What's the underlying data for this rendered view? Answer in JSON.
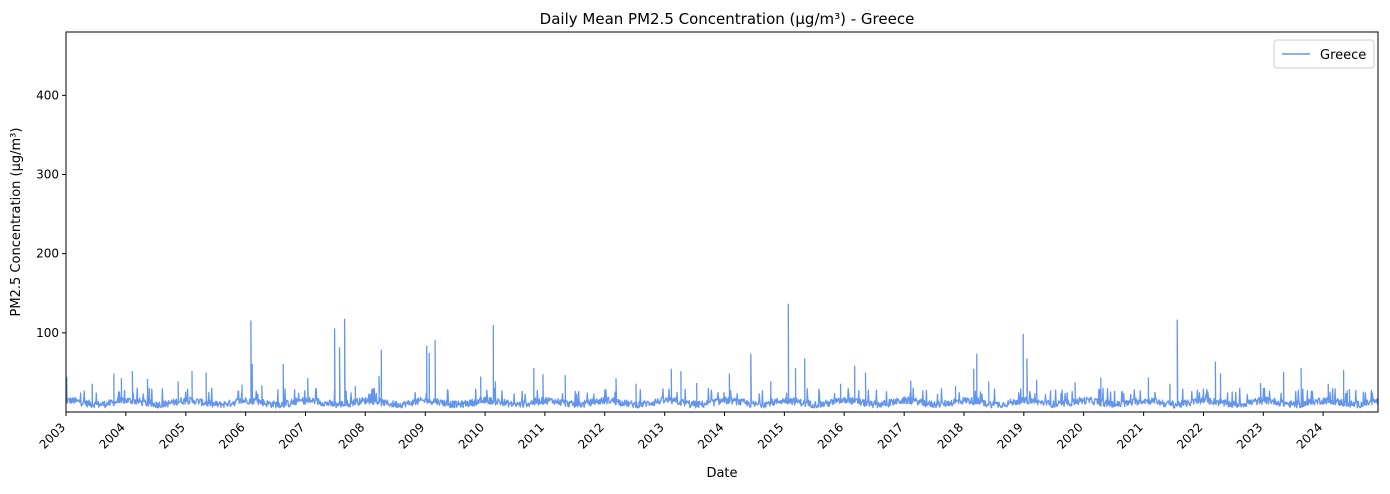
{
  "chart_data": {
    "type": "line",
    "title": "Daily Mean PM2.5 Concentration (µg/m³) - Greece",
    "xlabel": "Date",
    "ylabel": "PM2.5 Concentration (µg/m³)",
    "xlim": [
      "2003-01-01",
      "2024-12-01"
    ],
    "ylim": [
      0,
      480
    ],
    "yticks": [
      100,
      200,
      300,
      400
    ],
    "xticks": [
      "2003",
      "2004",
      "2005",
      "2006",
      "2007",
      "2008",
      "2009",
      "2010",
      "2011",
      "2012",
      "2013",
      "2014",
      "2015",
      "2016",
      "2017",
      "2018",
      "2019",
      "2020",
      "2021",
      "2022",
      "2023",
      "2024"
    ],
    "grid": false,
    "legend": {
      "position": "top-right",
      "entries": [
        "Greece"
      ]
    },
    "series": [
      {
        "name": "Greece",
        "color": "#6495ED",
        "baseline": {
          "typical": 12,
          "low": 5,
          "high": 22
        },
        "peaks": [
          [
            "2003-01-05",
            44
          ],
          [
            "2003-06-10",
            35
          ],
          [
            "2003-10-20",
            48
          ],
          [
            "2003-12-05",
            42
          ],
          [
            "2004-02-10",
            51
          ],
          [
            "2004-05-12",
            41
          ],
          [
            "2004-11-15",
            38
          ],
          [
            "2005-02-08",
            51
          ],
          [
            "2005-05-05",
            49
          ],
          [
            "2005-12-10",
            34
          ],
          [
            "2006-02-02",
            115
          ],
          [
            "2006-02-10",
            60
          ],
          [
            "2006-04-10",
            33
          ],
          [
            "2006-08-18",
            60
          ],
          [
            "2007-01-15",
            42
          ],
          [
            "2007-06-28",
            105
          ],
          [
            "2007-07-28",
            81
          ],
          [
            "2007-08-28",
            117
          ],
          [
            "2007-11-01",
            32
          ],
          [
            "2008-03-25",
            45
          ],
          [
            "2008-04-08",
            78
          ],
          [
            "2009-01-10",
            83
          ],
          [
            "2009-01-25",
            74
          ],
          [
            "2009-03-02",
            90
          ],
          [
            "2009-12-05",
            44
          ],
          [
            "2010-02-20",
            109
          ],
          [
            "2010-03-05",
            38
          ],
          [
            "2010-10-25",
            55
          ],
          [
            "2010-12-20",
            47
          ],
          [
            "2011-05-05",
            46
          ],
          [
            "2012-03-10",
            42
          ],
          [
            "2012-07-10",
            35
          ],
          [
            "2013-02-10",
            54
          ],
          [
            "2013-04-10",
            51
          ],
          [
            "2013-07-15",
            36
          ],
          [
            "2014-01-30",
            48
          ],
          [
            "2014-06-10",
            73
          ],
          [
            "2014-10-10",
            38
          ],
          [
            "2015-01-25",
            136
          ],
          [
            "2015-03-10",
            55
          ],
          [
            "2015-05-05",
            67
          ],
          [
            "2015-12-10",
            35
          ],
          [
            "2016-03-05",
            58
          ],
          [
            "2016-05-10",
            49
          ],
          [
            "2017-02-10",
            39
          ],
          [
            "2017-11-10",
            32
          ],
          [
            "2018-03-01",
            54
          ],
          [
            "2018-03-20",
            73
          ],
          [
            "2018-06-01",
            38
          ],
          [
            "2018-12-28",
            98
          ],
          [
            "2019-01-20",
            67
          ],
          [
            "2019-03-20",
            40
          ],
          [
            "2019-11-10",
            37
          ],
          [
            "2020-04-15",
            43
          ],
          [
            "2021-01-30",
            43
          ],
          [
            "2021-06-10",
            35
          ],
          [
            "2021-07-25",
            116
          ],
          [
            "2022-03-15",
            63
          ],
          [
            "2022-04-15",
            48
          ],
          [
            "2022-12-15",
            36
          ],
          [
            "2023-05-05",
            50
          ],
          [
            "2023-08-20",
            55
          ],
          [
            "2024-02-01",
            35
          ],
          [
            "2024-05-05",
            52
          ],
          [
            "2024-06-10",
            28
          ]
        ]
      }
    ]
  }
}
